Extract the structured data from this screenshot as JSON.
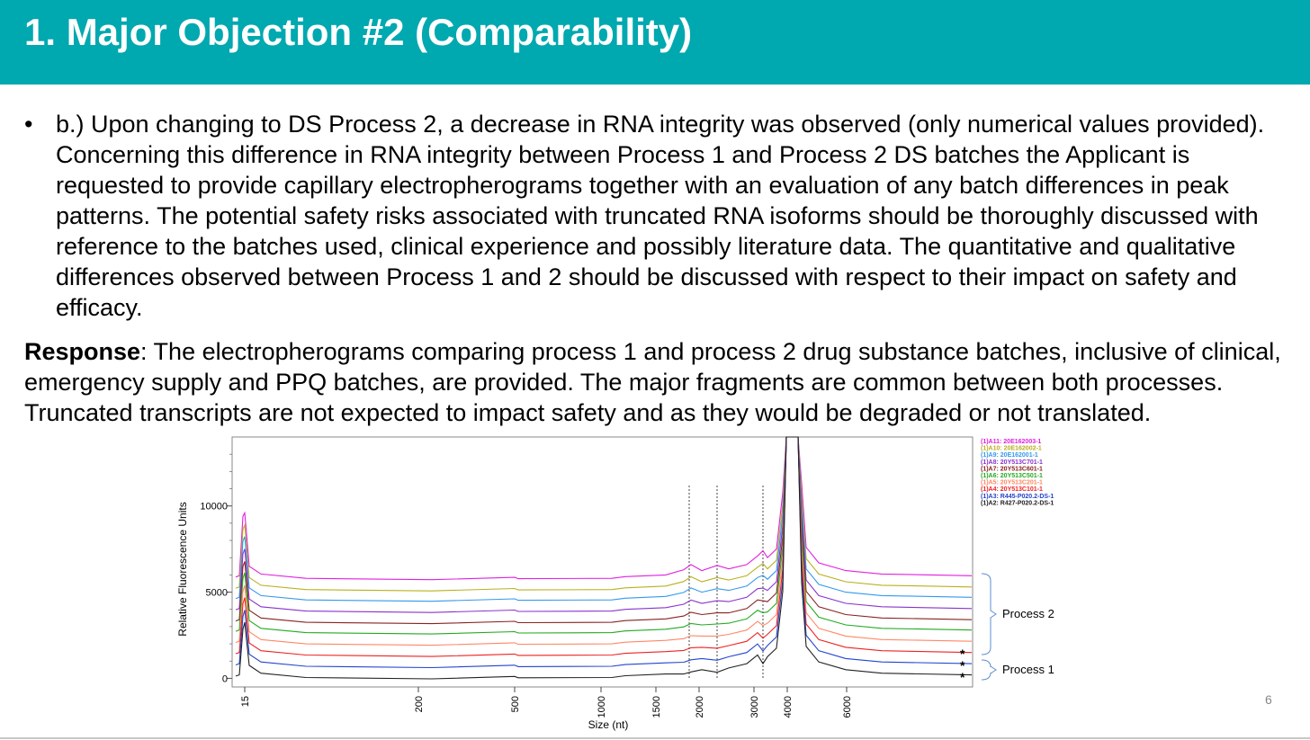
{
  "slide": {
    "title": "1. Major Objection #2 (Comparability)",
    "header_color": "#00a8b0",
    "bullet_symbol": "•",
    "bullet_text": "b.) Upon changing to DS Process 2, a decrease in RNA integrity was observed (only numerical values provided). Concerning this difference in RNA integrity between Process 1 and Process 2 DS batches the Applicant is requested to provide capillary electropherograms together with an evaluation of any batch differences in peak patterns. The potential safety risks associated with truncated RNA isoforms should be thoroughly discussed with reference to the batches used, clinical experience and possibly literature data. The quantitative and qualitative differences observed between Process 1 and 2 should be discussed with respect to their impact on safety and efficacy.",
    "response_label": "Response",
    "response_text": ":  The electropherograms comparing process 1 and process 2 drug substance batches, inclusive of clinical, emergency supply and PPQ batches, are provided.  The major fragments are common between both processes. Truncated transcripts are not expected to impact safety and as they would be degraded or not translated.",
    "page_number": "6"
  },
  "chart_data": {
    "type": "line",
    "xlabel": "Size (nt)",
    "ylabel": "Relative Fluorescence Units",
    "x_ticks": [
      "15",
      "200",
      "500",
      "1000",
      "1500",
      "2000",
      "3000",
      "4000",
      "6000"
    ],
    "y_ticks": [
      0,
      5000,
      10000
    ],
    "ylim": [
      -500,
      14000
    ],
    "dotted_markers": [
      "~1900",
      "~2400",
      "~3300"
    ],
    "groups": [
      {
        "label": "Process 2",
        "series_range": "A4–A11"
      },
      {
        "label": "Process 1",
        "series_range": "A2–A3"
      }
    ],
    "asterisk": "*",
    "series": [
      {
        "name": "(1)A11: 20E162003-1",
        "color": "#e020e0",
        "baseline": 5800
      },
      {
        "name": "(1)A10: 20E162002-1",
        "color": "#b8b020",
        "baseline": 5150
      },
      {
        "name": "(1)A9: 20E162001-1",
        "color": "#3399ee",
        "baseline": 4550
      },
      {
        "name": "(1)A8: 20Y513C701-1",
        "color": "#8833cc",
        "baseline": 3900
      },
      {
        "name": "(1)A7: 20Y513C601-1",
        "color": "#882222",
        "baseline": 3250
      },
      {
        "name": "(1)A6: 20Y513C501-1",
        "color": "#22aa22",
        "baseline": 2650
      },
      {
        "name": "(1)A5: 20Y513C201-1",
        "color": "#ff8866",
        "baseline": 2000
      },
      {
        "name": "(1)A4: 20Y513C101-1",
        "color": "#ee2222",
        "baseline": 1350
      },
      {
        "name": "(1)A3: R445-P020.2-DS-1",
        "color": "#2244cc",
        "baseline": 700
      },
      {
        "name": "(1)A2: R427-P020.2-DS-1",
        "color": "#222222",
        "baseline": 50
      }
    ]
  }
}
